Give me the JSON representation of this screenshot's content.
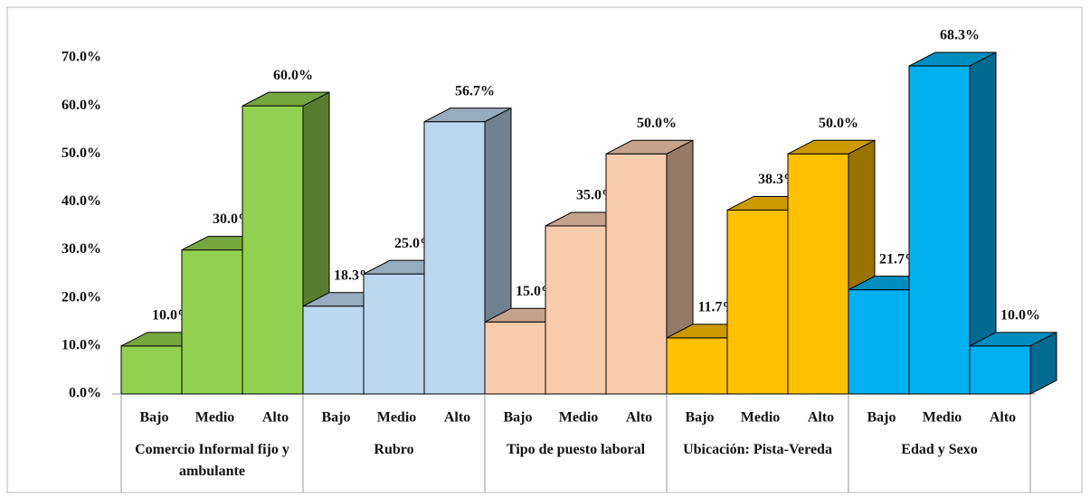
{
  "chart_data": {
    "type": "bar3d",
    "ylim": [
      0,
      70
    ],
    "yticks": [
      {
        "value": 0,
        "label": "0.0%"
      },
      {
        "value": 10,
        "label": "10.0%"
      },
      {
        "value": 20,
        "label": "20.0%"
      },
      {
        "value": 30,
        "label": "30.0%"
      },
      {
        "value": 40,
        "label": "40.0%"
      },
      {
        "value": 50,
        "label": "50.0%"
      },
      {
        "value": 60,
        "label": "60.0%"
      },
      {
        "value": 70,
        "label": "70.0%"
      }
    ],
    "groups": [
      {
        "name": "Comercio Informal fijo y ambulante",
        "color": "#92d050",
        "categories": [
          "Bajo",
          "Medio",
          "Alto"
        ],
        "values": [
          10,
          30,
          60
        ],
        "value_labels": [
          "10.0%",
          "30.0%",
          "60.0%"
        ]
      },
      {
        "name": "Rubro",
        "color": "#bdd7ee",
        "categories": [
          "Bajo",
          "Medio",
          "Alto"
        ],
        "values": [
          18.3,
          25,
          56.7
        ],
        "value_labels": [
          "18.3%",
          "25.0%",
          "56.7%"
        ]
      },
      {
        "name": "Tipo de puesto laboral",
        "color": "#f8cbad",
        "categories": [
          "Bajo",
          "Medio",
          "Alto"
        ],
        "values": [
          15,
          35,
          50
        ],
        "value_labels": [
          "15.0%",
          "35.0%",
          "50.0%"
        ]
      },
      {
        "name": "Ubicación: Pista-Vereda",
        "color": "#ffc000",
        "categories": [
          "Bajo",
          "Medio",
          "Alto"
        ],
        "values": [
          11.7,
          38.3,
          50
        ],
        "value_labels": [
          "11.7%",
          "38.3%",
          "50.0%"
        ]
      },
      {
        "name": "Edad y Sexo",
        "color": "#00b0f0",
        "categories": [
          "Bajo",
          "Medio",
          "Alto"
        ],
        "values": [
          21.7,
          68.3,
          10
        ],
        "value_labels": [
          "21.7%",
          "68.3%",
          "10.0%"
        ]
      }
    ]
  }
}
